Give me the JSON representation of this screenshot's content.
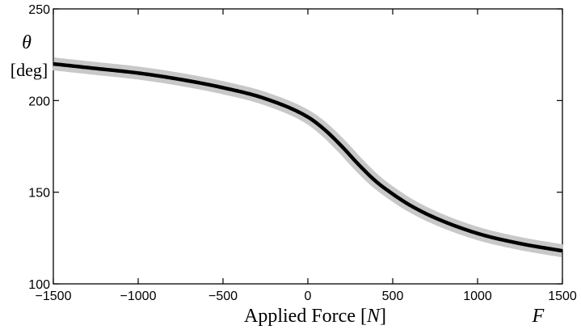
{
  "chart_data": {
    "type": "line",
    "xlabel": "Applied Force [N]",
    "xlabel_parts": {
      "text": "Applied Force [",
      "unit": "N",
      "close": "]"
    },
    "x_variable": "F",
    "ylabel": "θ",
    "yunit": "[deg]",
    "xlim": [
      -1500,
      1500
    ],
    "ylim": [
      100,
      250
    ],
    "xticks": [
      -1500,
      -1000,
      -500,
      0,
      500,
      1000,
      1500
    ],
    "xtick_labels": [
      "−1500",
      "−1000",
      "−500",
      "0",
      "500",
      "1000",
      "1500"
    ],
    "yticks": [
      100,
      150,
      200,
      250
    ],
    "ytick_labels": [
      "100",
      "150",
      "200",
      "250"
    ],
    "grid": false,
    "line_color": "#000000",
    "band_color": "#c8c8c8",
    "series": [
      {
        "x": [
          -1500,
          -1250,
          -1000,
          -750,
          -500,
          -250,
          0,
          100,
          200,
          300,
          400,
          500,
          600,
          750,
          1000,
          1250,
          1500
        ],
        "y": [
          220,
          217.5,
          215,
          211.5,
          207,
          201,
          191,
          184,
          175,
          165,
          156,
          149,
          143,
          136,
          127.5,
          122,
          118
        ]
      }
    ]
  }
}
